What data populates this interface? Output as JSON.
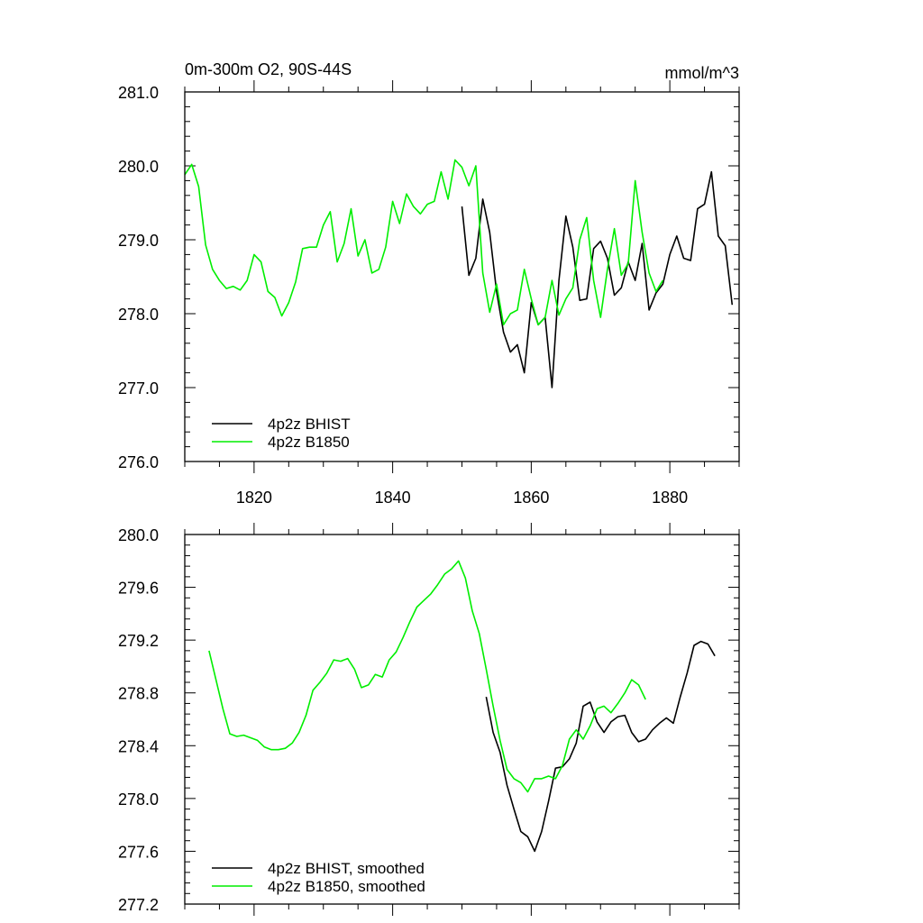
{
  "chart_data": [
    {
      "type": "line",
      "title": "0m-300m O2, 90S-44S",
      "units": "mmol/m^3",
      "xlim": [
        1810,
        1890
      ],
      "ylim": [
        276.0,
        281.0
      ],
      "x_ticks": [
        1820,
        1840,
        1860,
        1880
      ],
      "x_tick_labels": [
        "1820",
        "1840",
        "1860",
        "1880"
      ],
      "y_ticks": [
        276.0,
        277.0,
        278.0,
        279.0,
        280.0,
        281.0
      ],
      "y_tick_labels": [
        "276.0",
        "277.0",
        "278.0",
        "279.0",
        "280.0",
        "281.0"
      ],
      "legend_position": "bottom-left",
      "series": [
        {
          "name": "4p2z BHIST",
          "color": "#000000",
          "x": [
            1850,
            1851,
            1852,
            1853,
            1854,
            1855,
            1856,
            1857,
            1858,
            1859,
            1860,
            1861,
            1862,
            1863,
            1864,
            1865,
            1866,
            1867,
            1868,
            1869,
            1870,
            1871,
            1872,
            1873,
            1874,
            1875,
            1876,
            1877,
            1878,
            1879,
            1880,
            1881,
            1882,
            1883,
            1884,
            1885,
            1886,
            1887,
            1888,
            1889
          ],
          "y": [
            279.45,
            278.52,
            278.75,
            279.55,
            279.1,
            278.3,
            277.75,
            277.48,
            277.58,
            277.2,
            278.15,
            277.85,
            277.95,
            277.0,
            278.45,
            279.32,
            278.9,
            278.18,
            278.2,
            278.88,
            278.98,
            278.75,
            278.25,
            278.35,
            278.7,
            278.45,
            278.95,
            278.05,
            278.28,
            278.4,
            278.8,
            279.05,
            278.75,
            278.72,
            279.42,
            279.48,
            279.92,
            279.05,
            278.92,
            278.12
          ]
        },
        {
          "name": "4p2z B1850",
          "color": "#00ee00",
          "x": [
            1810,
            1811,
            1812,
            1813,
            1814,
            1815,
            1816,
            1817,
            1818,
            1819,
            1820,
            1821,
            1822,
            1823,
            1824,
            1825,
            1826,
            1827,
            1828,
            1829,
            1830,
            1831,
            1832,
            1833,
            1834,
            1835,
            1836,
            1837,
            1838,
            1839,
            1840,
            1841,
            1842,
            1843,
            1844,
            1845,
            1846,
            1847,
            1848,
            1849,
            1850,
            1851,
            1852,
            1853,
            1854,
            1855,
            1856,
            1857,
            1858,
            1859,
            1860,
            1861,
            1862,
            1863,
            1864,
            1865,
            1866,
            1867,
            1868,
            1869,
            1870,
            1871,
            1872,
            1873,
            1874,
            1875,
            1876,
            1877,
            1878,
            1879
          ],
          "y": [
            279.88,
            280.02,
            279.72,
            278.93,
            278.6,
            278.45,
            278.34,
            278.37,
            278.32,
            278.45,
            278.8,
            278.7,
            278.3,
            278.22,
            277.97,
            278.15,
            278.43,
            278.88,
            278.9,
            278.9,
            279.2,
            279.38,
            278.7,
            278.95,
            279.42,
            278.78,
            279.0,
            278.55,
            278.6,
            278.9,
            279.52,
            279.22,
            279.62,
            279.45,
            279.35,
            279.48,
            279.52,
            279.92,
            279.55,
            280.08,
            279.98,
            279.73,
            280.0,
            278.55,
            278.02,
            278.4,
            277.85,
            278.0,
            278.05,
            278.6,
            278.2,
            277.85,
            277.95,
            278.45,
            277.98,
            278.2,
            278.35,
            279.0,
            279.3,
            278.45,
            277.95,
            278.6,
            279.15,
            278.52,
            278.68,
            279.8,
            279.1,
            278.55,
            278.3,
            278.45
          ]
        }
      ]
    },
    {
      "type": "line",
      "title": "",
      "xlim": [
        1810,
        1890
      ],
      "ylim": [
        277.2,
        280.0
      ],
      "x_ticks": [
        1820,
        1840,
        1860,
        1880
      ],
      "x_tick_labels": [],
      "y_ticks": [
        277.2,
        277.6,
        278.0,
        278.4,
        278.8,
        279.2,
        279.6,
        280.0
      ],
      "y_tick_labels": [
        "277.2",
        "277.6",
        "278.0",
        "278.4",
        "278.8",
        "279.2",
        "279.6",
        "280.0"
      ],
      "legend_position": "bottom-left",
      "series": [
        {
          "name": "4p2z BHIST, smoothed",
          "color": "#000000",
          "x": [
            1853.5,
            1854.5,
            1855.5,
            1856.5,
            1857.5,
            1858.5,
            1859.5,
            1860.5,
            1861.5,
            1862.5,
            1863.5,
            1864.5,
            1865.5,
            1866.5,
            1867.5,
            1868.5,
            1869.5,
            1870.5,
            1871.5,
            1872.5,
            1873.5,
            1874.5,
            1875.5,
            1876.5,
            1877.5,
            1878.5,
            1879.5,
            1880.5,
            1881.5,
            1882.5,
            1883.5,
            1884.5,
            1885.5,
            1886.5
          ],
          "y": [
            278.77,
            278.5,
            278.35,
            278.1,
            277.92,
            277.75,
            277.71,
            277.6,
            277.75,
            277.98,
            278.23,
            278.24,
            278.3,
            278.42,
            278.7,
            278.73,
            278.58,
            278.5,
            278.58,
            278.62,
            278.63,
            278.5,
            278.43,
            278.45,
            278.52,
            278.57,
            278.61,
            278.57,
            278.77,
            278.95,
            279.16,
            279.19,
            279.17,
            279.08
          ]
        },
        {
          "name": "4p2z B1850, smoothed",
          "color": "#00ee00",
          "x": [
            1813.5,
            1814.5,
            1815.5,
            1816.5,
            1817.5,
            1818.5,
            1819.5,
            1820.5,
            1821.5,
            1822.5,
            1823.5,
            1824.5,
            1825.5,
            1826.5,
            1827.5,
            1828.5,
            1829.5,
            1830.5,
            1831.5,
            1832.5,
            1833.5,
            1834.5,
            1835.5,
            1836.5,
            1837.5,
            1838.5,
            1839.5,
            1840.5,
            1841.5,
            1842.5,
            1843.5,
            1844.5,
            1845.5,
            1846.5,
            1847.5,
            1848.5,
            1849.5,
            1850.5,
            1851.5,
            1852.5,
            1853.5,
            1854.5,
            1855.5,
            1856.5,
            1857.5,
            1858.5,
            1859.5,
            1860.5,
            1861.5,
            1862.5,
            1863.5,
            1864.5,
            1865.5,
            1866.5,
            1867.5,
            1868.5,
            1869.5,
            1870.5,
            1871.5,
            1872.5,
            1873.5,
            1874.5,
            1875.5,
            1876.5
          ],
          "y": [
            279.12,
            278.9,
            278.68,
            278.49,
            278.47,
            278.48,
            278.46,
            278.44,
            278.39,
            278.37,
            278.37,
            278.38,
            278.42,
            278.5,
            278.63,
            278.82,
            278.88,
            278.95,
            279.05,
            279.04,
            279.06,
            278.98,
            278.84,
            278.86,
            278.94,
            278.92,
            279.05,
            279.11,
            279.22,
            279.34,
            279.45,
            279.5,
            279.55,
            279.62,
            279.7,
            279.74,
            279.8,
            279.67,
            279.42,
            279.25,
            278.98,
            278.7,
            278.44,
            278.22,
            278.15,
            278.12,
            278.05,
            278.15,
            278.15,
            278.17,
            278.15,
            278.25,
            278.45,
            278.52,
            278.45,
            278.55,
            278.68,
            278.7,
            278.65,
            278.72,
            278.8,
            278.9,
            278.86,
            278.75
          ]
        }
      ]
    }
  ]
}
